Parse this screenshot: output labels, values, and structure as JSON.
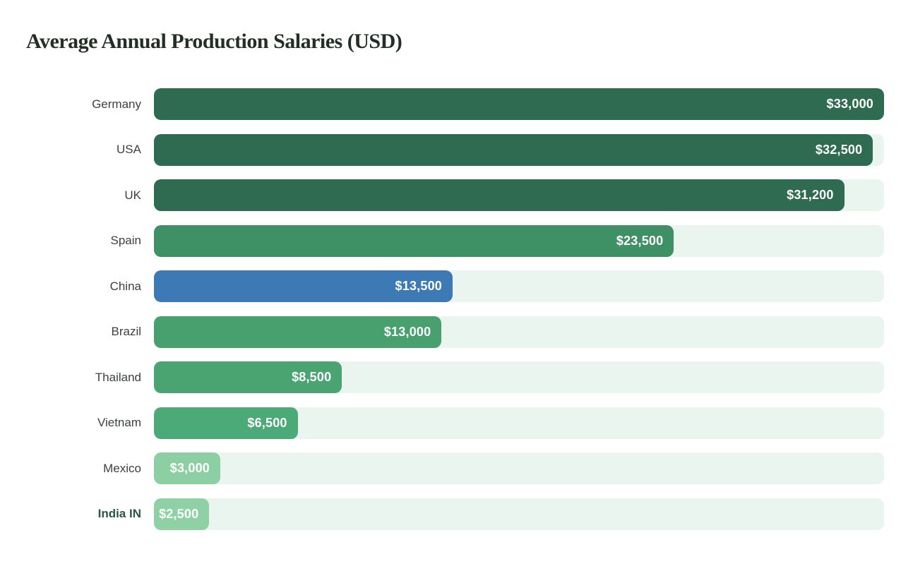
{
  "chart_data": {
    "type": "bar",
    "orientation": "horizontal",
    "title": "Average Annual Production Salaries (USD)",
    "categories": [
      "Germany",
      "USA",
      "UK",
      "Spain",
      "China",
      "Brazil",
      "Thailand",
      "Vietnam",
      "Mexico",
      "India IN"
    ],
    "values": [
      33000,
      32500,
      31200,
      23500,
      13500,
      13000,
      8500,
      6500,
      3000,
      2500
    ],
    "value_labels": [
      "$33,000",
      "$32,500",
      "$31,200",
      "$23,500",
      "$13,500",
      "$13,000",
      "$8,500",
      "$6,500",
      "$3,000",
      "$2,500"
    ],
    "xlim": [
      0,
      33000
    ],
    "bar_colors": [
      "#2e6b50",
      "#2e6b50",
      "#2e6b50",
      "#3f9065",
      "#3d7ab5",
      "#48a06e",
      "#4aa472",
      "#4caa78",
      "#8ccfa2",
      "#8fd1a5"
    ],
    "track_color": "#e9f5ee",
    "highlighted_category": "China",
    "highlight_color": "#3d7ab5",
    "emphasized_category": "India IN",
    "emphasized_label_color": "#2c5743",
    "grid": false,
    "legend": false,
    "axis_ticks": false
  },
  "page": {
    "background_color": "#ffffff",
    "title_color": "#222e26",
    "category_label_color": "#3c413d",
    "value_label_color": "#ffffff"
  }
}
